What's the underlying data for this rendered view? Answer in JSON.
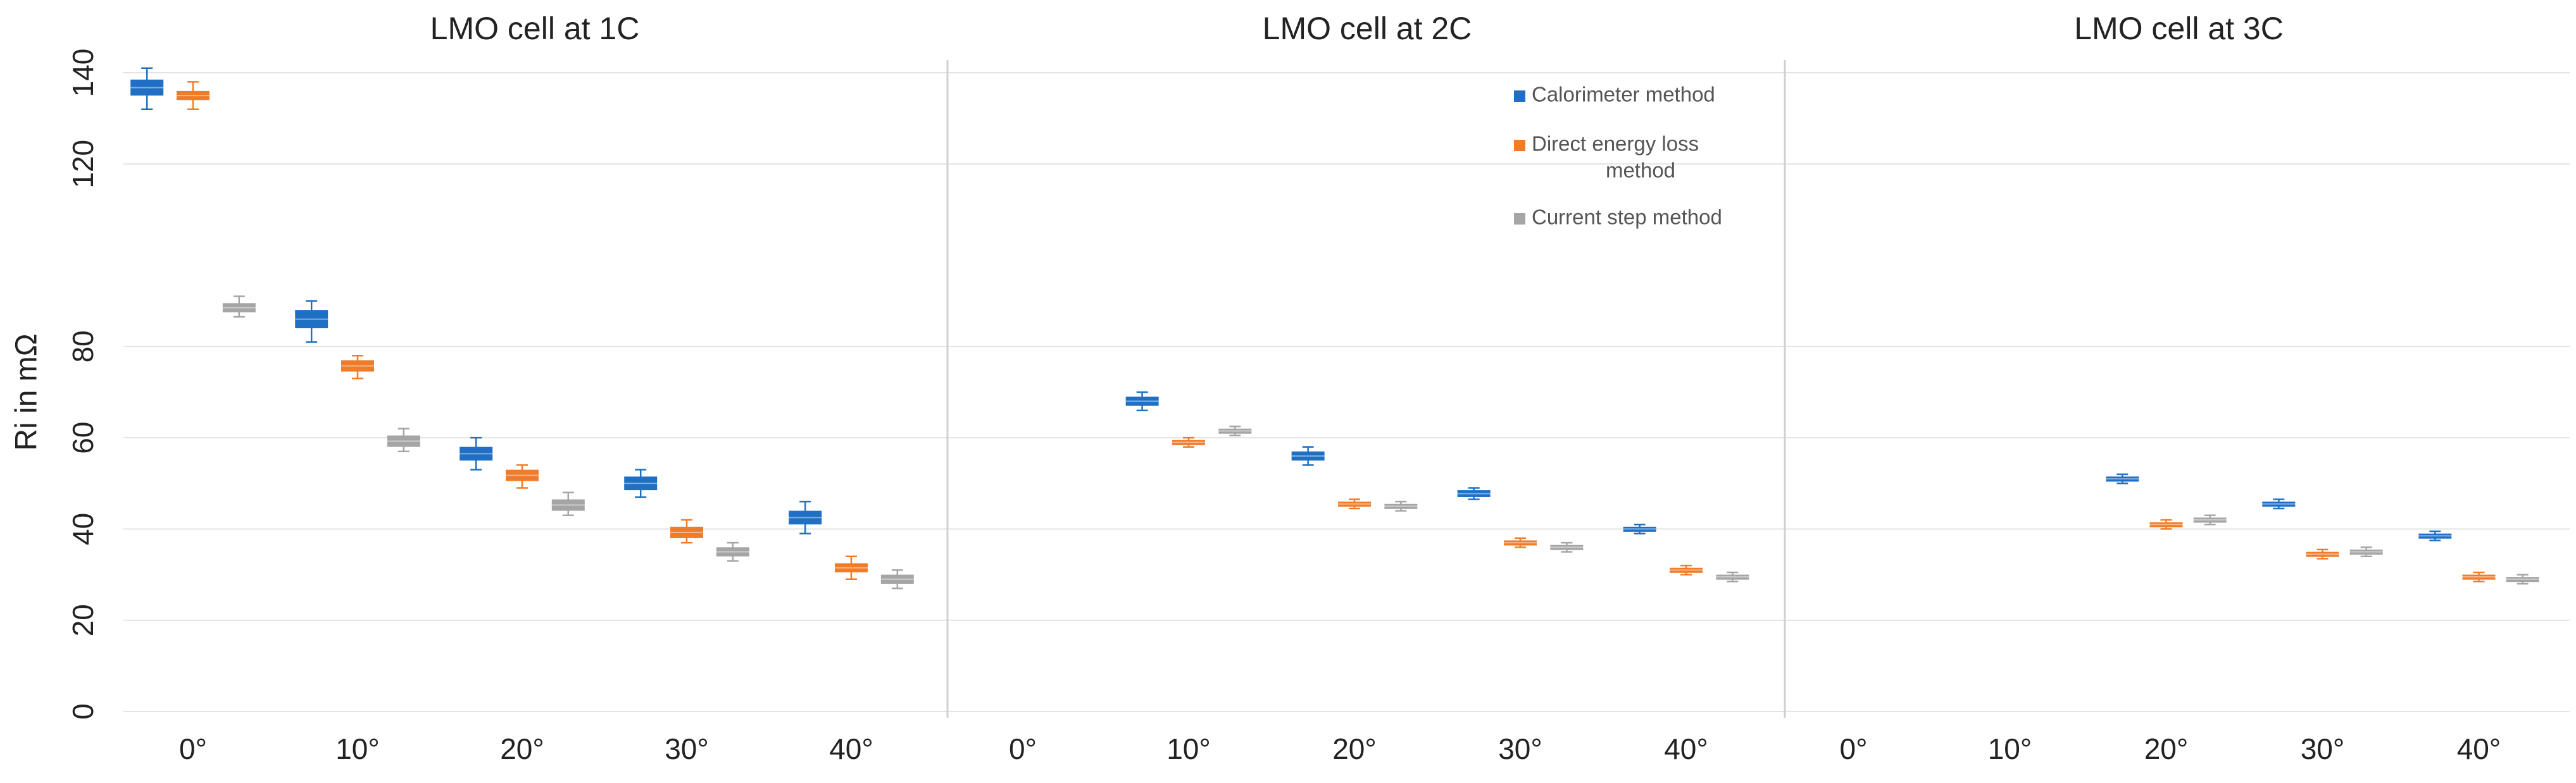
{
  "chart_data": {
    "type": "box",
    "ylabel": "Ri in mΩ",
    "ylim": [
      0,
      140
    ],
    "yticks": [
      0,
      20,
      40,
      60,
      80,
      120,
      140
    ],
    "legend_position": "top-right of middle panel",
    "colors": {
      "Calorimeter method": "#1f6fc5",
      "Direct energy loss method": "#f07c2a",
      "Current step method": "#a5a5a5"
    },
    "legend": [
      {
        "name": "Calorimeter method",
        "lines": [
          "Calorimeter method"
        ],
        "color": "#1f6fc5"
      },
      {
        "name": "Direct energy loss method",
        "lines": [
          "Direct energy loss",
          "method"
        ],
        "color": "#f07c2a"
      },
      {
        "name": "Current step method",
        "lines": [
          "Current step method"
        ],
        "color": "#a5a5a5"
      }
    ],
    "panels": [
      {
        "title": "LMO cell at 1C",
        "categories": [
          "0°",
          "10°",
          "20°",
          "30°",
          "40°"
        ],
        "series": [
          {
            "name": "Calorimeter method",
            "boxes": [
              {
                "cat": 0,
                "min": 132,
                "q1": 135,
                "q3": 138.5,
                "max": 141
              },
              {
                "cat": 1,
                "min": 81,
                "q1": 84,
                "q3": 88,
                "max": 90
              },
              {
                "cat": 2,
                "min": 53,
                "q1": 55,
                "q3": 58,
                "max": 60
              },
              {
                "cat": 3,
                "min": 47,
                "q1": 48.5,
                "q3": 51.5,
                "max": 53
              },
              {
                "cat": 4,
                "min": 39,
                "q1": 41,
                "q3": 44,
                "max": 46
              }
            ]
          },
          {
            "name": "Direct energy loss method",
            "boxes": [
              {
                "cat": 0,
                "min": 132,
                "q1": 134,
                "q3": 136,
                "max": 138
              },
              {
                "cat": 1,
                "min": 73,
                "q1": 74.5,
                "q3": 77,
                "max": 78
              },
              {
                "cat": 2,
                "min": 49,
                "q1": 50.5,
                "q3": 53,
                "max": 54
              },
              {
                "cat": 3,
                "min": 37,
                "q1": 38,
                "q3": 40.5,
                "max": 42
              },
              {
                "cat": 4,
                "min": 29,
                "q1": 30.5,
                "q3": 32.5,
                "max": 34
              }
            ]
          },
          {
            "name": "Current step method",
            "boxes": [
              {
                "cat": 0,
                "min": 86.5,
                "q1": 87.5,
                "q3": 89.5,
                "max": 91
              },
              {
                "cat": 1,
                "min": 57,
                "q1": 58,
                "q3": 60.5,
                "max": 62
              },
              {
                "cat": 2,
                "min": 43,
                "q1": 44,
                "q3": 46.5,
                "max": 48
              },
              {
                "cat": 3,
                "min": 33,
                "q1": 34,
                "q3": 36,
                "max": 37
              },
              {
                "cat": 4,
                "min": 27,
                "q1": 28,
                "q3": 30,
                "max": 31
              }
            ]
          }
        ]
      },
      {
        "title": "LMO cell at 2C",
        "categories": [
          "0°",
          "10°",
          "20°",
          "30°",
          "40°"
        ],
        "series": [
          {
            "name": "Calorimeter method",
            "boxes": [
              {
                "cat": 1,
                "min": 66,
                "q1": 67,
                "q3": 69,
                "max": 70
              },
              {
                "cat": 2,
                "min": 54,
                "q1": 55,
                "q3": 57,
                "max": 58
              },
              {
                "cat": 3,
                "min": 46.5,
                "q1": 47,
                "q3": 48.5,
                "max": 49
              },
              {
                "cat": 4,
                "min": 39,
                "q1": 39.5,
                "q3": 40.5,
                "max": 41
              }
            ]
          },
          {
            "name": "Direct energy loss method",
            "boxes": [
              {
                "cat": 1,
                "min": 58,
                "q1": 58.5,
                "q3": 59.5,
                "max": 60
              },
              {
                "cat": 2,
                "min": 44.5,
                "q1": 45,
                "q3": 46,
                "max": 46.5
              },
              {
                "cat": 3,
                "min": 36,
                "q1": 36.5,
                "q3": 37.5,
                "max": 38
              },
              {
                "cat": 4,
                "min": 30,
                "q1": 30.5,
                "q3": 31.5,
                "max": 32
              }
            ]
          },
          {
            "name": "Current step method",
            "boxes": [
              {
                "cat": 1,
                "min": 60.5,
                "q1": 61,
                "q3": 62,
                "max": 62.5
              },
              {
                "cat": 2,
                "min": 44,
                "q1": 44.5,
                "q3": 45.5,
                "max": 46
              },
              {
                "cat": 3,
                "min": 35,
                "q1": 35.5,
                "q3": 36.5,
                "max": 37
              },
              {
                "cat": 4,
                "min": 28.5,
                "q1": 29,
                "q3": 30,
                "max": 30.5
              }
            ]
          }
        ]
      },
      {
        "title": "LMO cell at 3C",
        "categories": [
          "0°",
          "10°",
          "20°",
          "30°",
          "40°"
        ],
        "series": [
          {
            "name": "Calorimeter method",
            "boxes": [
              {
                "cat": 2,
                "min": 50,
                "q1": 50.5,
                "q3": 51.5,
                "max": 52
              },
              {
                "cat": 3,
                "min": 44.5,
                "q1": 45,
                "q3": 46,
                "max": 46.5
              },
              {
                "cat": 4,
                "min": 37.5,
                "q1": 38,
                "q3": 39,
                "max": 39.5
              }
            ]
          },
          {
            "name": "Direct energy loss method",
            "boxes": [
              {
                "cat": 2,
                "min": 40,
                "q1": 40.5,
                "q3": 41.5,
                "max": 42
              },
              {
                "cat": 3,
                "min": 33.5,
                "q1": 34,
                "q3": 35,
                "max": 35.5
              },
              {
                "cat": 4,
                "min": 28.5,
                "q1": 29,
                "q3": 30,
                "max": 30.5
              }
            ]
          },
          {
            "name": "Current step method",
            "boxes": [
              {
                "cat": 2,
                "min": 41,
                "q1": 41.5,
                "q3": 42.5,
                "max": 43
              },
              {
                "cat": 3,
                "min": 34,
                "q1": 34.5,
                "q3": 35.5,
                "max": 36
              },
              {
                "cat": 4,
                "min": 28,
                "q1": 28.5,
                "q3": 29.5,
                "max": 30
              }
            ]
          }
        ]
      }
    ]
  }
}
